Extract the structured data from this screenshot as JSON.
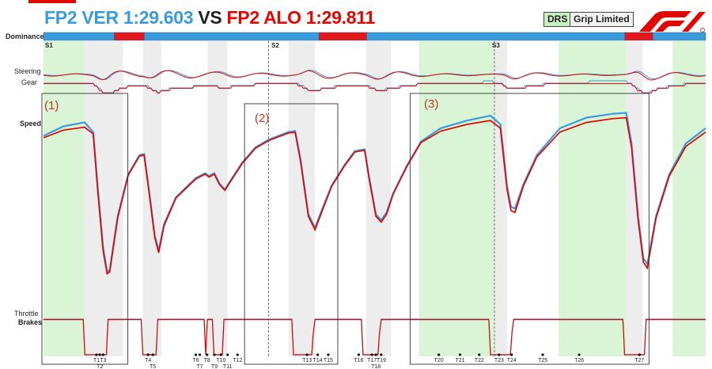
{
  "header": {
    "ver_text": "FP2 VER 1:29.603",
    "vs_text": "VS",
    "alo_text": "FP2 ALO 1:29.811",
    "legend_drs": "DRS",
    "legend_grip": "Grip Limited",
    "logo_icon": "f1-logo-icon"
  },
  "colors": {
    "ver": "#3a9bdc",
    "alo": "#e10600",
    "drs": "#d9f5d6",
    "grip": "#ededed",
    "dominance_ver": "#3a9bdc",
    "dominance_alo": "#e4171d"
  },
  "labels": {
    "dominance": "Dominance",
    "steering": "Steering",
    "gear": "Gear",
    "speed": "Speed",
    "throttle": "Throttle",
    "brakes": "Brakes"
  },
  "sectors": [
    "S1",
    "S2",
    "S3"
  ],
  "annotations": [
    "(1)",
    "(2)",
    "(3)"
  ],
  "chart_data": {
    "type": "line",
    "title": "FP2 VER 1:29.603 VS FP2 ALO 1:29.811",
    "x_range": [
      0,
      1
    ],
    "speed_range": [
      0,
      1
    ],
    "dominance": [
      {
        "start": 0.0,
        "end": 0.107,
        "driver": "VER"
      },
      {
        "start": 0.107,
        "end": 0.152,
        "driver": "ALO"
      },
      {
        "start": 0.152,
        "end": 0.416,
        "driver": "VER"
      },
      {
        "start": 0.416,
        "end": 0.488,
        "driver": "ALO"
      },
      {
        "start": 0.488,
        "end": 0.878,
        "driver": "VER"
      },
      {
        "start": 0.878,
        "end": 0.92,
        "driver": "ALO"
      },
      {
        "start": 0.92,
        "end": 1.0,
        "driver": "VER"
      }
    ],
    "drs_zones": [
      [
        0.0,
        0.062
      ],
      [
        0.567,
        0.681
      ],
      [
        0.778,
        0.88
      ],
      [
        0.95,
        1.0
      ]
    ],
    "grip_zones": [
      [
        0.062,
        0.12
      ],
      [
        0.15,
        0.178
      ],
      [
        0.248,
        0.278
      ],
      [
        0.37,
        0.41
      ],
      [
        0.487,
        0.525
      ],
      [
        0.681,
        0.7
      ],
      [
        0.88,
        0.905
      ]
    ],
    "sector_positions": [
      0.0,
      0.34,
      0.681
    ],
    "corners": [
      {
        "label": "T1",
        "x": 0.08,
        "row": 0
      },
      {
        "label": "T2",
        "x": 0.085,
        "row": 1
      },
      {
        "label": "T3",
        "x": 0.09,
        "row": 0
      },
      {
        "label": "T4",
        "x": 0.158,
        "row": 0
      },
      {
        "label": "T5",
        "x": 0.165,
        "row": 1
      },
      {
        "label": "T6",
        "x": 0.23,
        "row": 0
      },
      {
        "label": "T7",
        "x": 0.236,
        "row": 1
      },
      {
        "label": "T8",
        "x": 0.247,
        "row": 0
      },
      {
        "label": "T9",
        "x": 0.258,
        "row": 1
      },
      {
        "label": "T10",
        "x": 0.268,
        "row": 0
      },
      {
        "label": "T11",
        "x": 0.278,
        "row": 1
      },
      {
        "label": "T12",
        "x": 0.293,
        "row": 0
      },
      {
        "label": "T13",
        "x": 0.398,
        "row": 0
      },
      {
        "label": "T14",
        "x": 0.414,
        "row": 0
      },
      {
        "label": "T15",
        "x": 0.43,
        "row": 0
      },
      {
        "label": "T16",
        "x": 0.476,
        "row": 0
      },
      {
        "label": "T17",
        "x": 0.496,
        "row": 0
      },
      {
        "label": "T18",
        "x": 0.502,
        "row": 1
      },
      {
        "label": "T19",
        "x": 0.51,
        "row": 0
      },
      {
        "label": "T20",
        "x": 0.597,
        "row": 0
      },
      {
        "label": "T21",
        "x": 0.629,
        "row": 0
      },
      {
        "label": "T22",
        "x": 0.658,
        "row": 0
      },
      {
        "label": "T23",
        "x": 0.688,
        "row": 0
      },
      {
        "label": "T24",
        "x": 0.707,
        "row": 0
      },
      {
        "label": "T25",
        "x": 0.754,
        "row": 0
      },
      {
        "label": "T26",
        "x": 0.809,
        "row": 0
      },
      {
        "label": "T27",
        "x": 0.9,
        "row": 0
      }
    ],
    "annotation_boxes": [
      [
        0.0,
        0.125
      ],
      [
        0.306,
        0.442
      ],
      [
        0.556,
        0.912
      ]
    ],
    "series": [
      {
        "name": "VER",
        "speed": [
          [
            0.0,
            0.82
          ],
          [
            0.03,
            0.87
          ],
          [
            0.062,
            0.89
          ],
          [
            0.075,
            0.84
          ],
          [
            0.082,
            0.55
          ],
          [
            0.09,
            0.24
          ],
          [
            0.096,
            0.11
          ],
          [
            0.1,
            0.12
          ],
          [
            0.112,
            0.4
          ],
          [
            0.128,
            0.62
          ],
          [
            0.145,
            0.72
          ],
          [
            0.152,
            0.725
          ],
          [
            0.16,
            0.52
          ],
          [
            0.168,
            0.3
          ],
          [
            0.174,
            0.22
          ],
          [
            0.182,
            0.36
          ],
          [
            0.2,
            0.5
          ],
          [
            0.23,
            0.6
          ],
          [
            0.244,
            0.625
          ],
          [
            0.25,
            0.61
          ],
          [
            0.258,
            0.625
          ],
          [
            0.266,
            0.57
          ],
          [
            0.274,
            0.54
          ],
          [
            0.283,
            0.59
          ],
          [
            0.3,
            0.68
          ],
          [
            0.32,
            0.76
          ],
          [
            0.34,
            0.8
          ],
          [
            0.37,
            0.84
          ],
          [
            0.38,
            0.845
          ],
          [
            0.388,
            0.7
          ],
          [
            0.4,
            0.41
          ],
          [
            0.41,
            0.34
          ],
          [
            0.42,
            0.43
          ],
          [
            0.435,
            0.56
          ],
          [
            0.455,
            0.67
          ],
          [
            0.47,
            0.74
          ],
          [
            0.485,
            0.75
          ],
          [
            0.492,
            0.6
          ],
          [
            0.502,
            0.41
          ],
          [
            0.51,
            0.38
          ],
          [
            0.518,
            0.42
          ],
          [
            0.528,
            0.52
          ],
          [
            0.548,
            0.66
          ],
          [
            0.57,
            0.79
          ],
          [
            0.6,
            0.86
          ],
          [
            0.64,
            0.9
          ],
          [
            0.675,
            0.925
          ],
          [
            0.69,
            0.88
          ],
          [
            0.7,
            0.56
          ],
          [
            0.706,
            0.45
          ],
          [
            0.712,
            0.44
          ],
          [
            0.725,
            0.57
          ],
          [
            0.745,
            0.72
          ],
          [
            0.78,
            0.86
          ],
          [
            0.82,
            0.915
          ],
          [
            0.86,
            0.935
          ],
          [
            0.88,
            0.94
          ],
          [
            0.888,
            0.78
          ],
          [
            0.898,
            0.4
          ],
          [
            0.906,
            0.18
          ],
          [
            0.912,
            0.15
          ],
          [
            0.925,
            0.4
          ],
          [
            0.945,
            0.62
          ],
          [
            0.97,
            0.78
          ],
          [
            1.0,
            0.86
          ]
        ]
      },
      {
        "name": "ALO",
        "speed": [
          [
            0.0,
            0.81
          ],
          [
            0.03,
            0.85
          ],
          [
            0.062,
            0.865
          ],
          [
            0.075,
            0.83
          ],
          [
            0.082,
            0.53
          ],
          [
            0.09,
            0.22
          ],
          [
            0.096,
            0.1
          ],
          [
            0.1,
            0.11
          ],
          [
            0.112,
            0.39
          ],
          [
            0.128,
            0.615
          ],
          [
            0.145,
            0.715
          ],
          [
            0.152,
            0.72
          ],
          [
            0.16,
            0.51
          ],
          [
            0.168,
            0.29
          ],
          [
            0.174,
            0.21
          ],
          [
            0.182,
            0.35
          ],
          [
            0.2,
            0.495
          ],
          [
            0.23,
            0.595
          ],
          [
            0.244,
            0.62
          ],
          [
            0.25,
            0.605
          ],
          [
            0.258,
            0.62
          ],
          [
            0.266,
            0.565
          ],
          [
            0.274,
            0.535
          ],
          [
            0.283,
            0.585
          ],
          [
            0.3,
            0.675
          ],
          [
            0.32,
            0.755
          ],
          [
            0.34,
            0.795
          ],
          [
            0.37,
            0.835
          ],
          [
            0.38,
            0.838
          ],
          [
            0.388,
            0.69
          ],
          [
            0.4,
            0.4
          ],
          [
            0.41,
            0.33
          ],
          [
            0.42,
            0.42
          ],
          [
            0.435,
            0.555
          ],
          [
            0.455,
            0.665
          ],
          [
            0.47,
            0.735
          ],
          [
            0.485,
            0.745
          ],
          [
            0.492,
            0.59
          ],
          [
            0.502,
            0.4
          ],
          [
            0.51,
            0.37
          ],
          [
            0.518,
            0.41
          ],
          [
            0.528,
            0.515
          ],
          [
            0.548,
            0.655
          ],
          [
            0.57,
            0.785
          ],
          [
            0.6,
            0.845
          ],
          [
            0.64,
            0.88
          ],
          [
            0.675,
            0.9
          ],
          [
            0.69,
            0.86
          ],
          [
            0.7,
            0.54
          ],
          [
            0.706,
            0.43
          ],
          [
            0.712,
            0.42
          ],
          [
            0.725,
            0.56
          ],
          [
            0.745,
            0.71
          ],
          [
            0.78,
            0.84
          ],
          [
            0.82,
            0.89
          ],
          [
            0.86,
            0.91
          ],
          [
            0.88,
            0.915
          ],
          [
            0.888,
            0.76
          ],
          [
            0.898,
            0.38
          ],
          [
            0.906,
            0.16
          ],
          [
            0.912,
            0.13
          ],
          [
            0.925,
            0.39
          ],
          [
            0.945,
            0.61
          ],
          [
            0.97,
            0.765
          ],
          [
            1.0,
            0.84
          ]
        ]
      }
    ]
  }
}
